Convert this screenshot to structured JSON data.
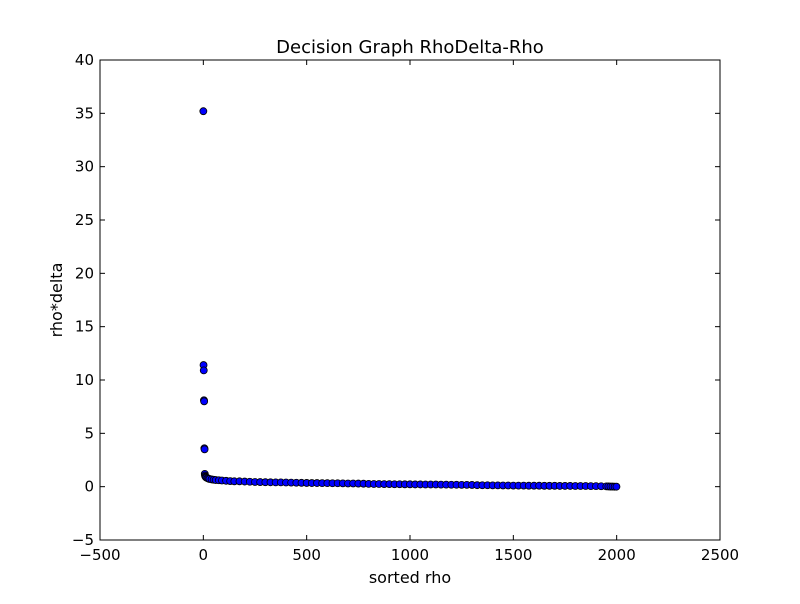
{
  "chart_data": {
    "type": "scatter",
    "title": "Decision Graph RhoDelta-Rho",
    "xlabel": "sorted rho",
    "ylabel": "rho*delta",
    "xlim": [
      -500,
      2500
    ],
    "ylim": [
      -5,
      40
    ],
    "xticks": [
      -500,
      0,
      500,
      1000,
      1500,
      2000,
      2500
    ],
    "yticks": [
      -5,
      0,
      5,
      10,
      15,
      20,
      25,
      30,
      35,
      40
    ],
    "xtick_labels": [
      "−500",
      "0",
      "500",
      "1000",
      "1500",
      "2000",
      "2500"
    ],
    "ytick_labels": [
      "−5",
      "0",
      "5",
      "10",
      "15",
      "20",
      "25",
      "30",
      "35",
      "40"
    ],
    "grid": false,
    "marker_color": "#0000ff",
    "marker_edge_color": "#000000",
    "series": [
      {
        "points": [
          [
            0,
            35.2
          ],
          [
            1,
            11.4
          ],
          [
            2,
            10.9
          ],
          [
            3,
            8.1
          ],
          [
            4,
            8.0
          ],
          [
            5,
            3.6
          ],
          [
            6,
            3.5
          ],
          [
            7,
            1.2
          ],
          [
            8,
            1.05
          ],
          [
            10,
            0.95
          ],
          [
            12,
            0.9
          ],
          [
            15,
            0.85
          ],
          [
            20,
            0.8
          ],
          [
            25,
            0.75
          ],
          [
            30,
            0.72
          ],
          [
            40,
            0.68
          ],
          [
            50,
            0.65
          ],
          [
            60,
            0.62
          ],
          [
            75,
            0.6
          ],
          [
            90,
            0.58
          ],
          [
            110,
            0.55
          ],
          [
            130,
            0.52
          ],
          [
            150,
            0.5
          ],
          [
            175,
            0.5
          ],
          [
            200,
            0.48
          ],
          [
            225,
            0.46
          ],
          [
            250,
            0.44
          ],
          [
            275,
            0.43
          ],
          [
            300,
            0.42
          ],
          [
            325,
            0.41
          ],
          [
            350,
            0.4
          ],
          [
            375,
            0.4
          ],
          [
            400,
            0.39
          ],
          [
            425,
            0.38
          ],
          [
            450,
            0.37
          ],
          [
            475,
            0.36
          ],
          [
            500,
            0.35
          ],
          [
            525,
            0.34
          ],
          [
            550,
            0.34
          ],
          [
            575,
            0.33
          ],
          [
            600,
            0.33
          ],
          [
            625,
            0.32
          ],
          [
            650,
            0.32
          ],
          [
            675,
            0.31
          ],
          [
            700,
            0.3
          ],
          [
            725,
            0.3
          ],
          [
            750,
            0.29
          ],
          [
            775,
            0.28
          ],
          [
            800,
            0.26
          ],
          [
            825,
            0.25
          ],
          [
            850,
            0.25
          ],
          [
            875,
            0.24
          ],
          [
            900,
            0.24
          ],
          [
            925,
            0.23
          ],
          [
            950,
            0.23
          ],
          [
            975,
            0.22
          ],
          [
            1000,
            0.22
          ],
          [
            1025,
            0.21
          ],
          [
            1050,
            0.21
          ],
          [
            1075,
            0.2
          ],
          [
            1100,
            0.2
          ],
          [
            1125,
            0.2
          ],
          [
            1150,
            0.19
          ],
          [
            1175,
            0.19
          ],
          [
            1200,
            0.18
          ],
          [
            1225,
            0.18
          ],
          [
            1250,
            0.17
          ],
          [
            1275,
            0.17
          ],
          [
            1300,
            0.16
          ],
          [
            1325,
            0.14
          ],
          [
            1350,
            0.13
          ],
          [
            1375,
            0.13
          ],
          [
            1400,
            0.12
          ],
          [
            1425,
            0.12
          ],
          [
            1450,
            0.11
          ],
          [
            1475,
            0.11
          ],
          [
            1500,
            0.1
          ],
          [
            1525,
            0.1
          ],
          [
            1550,
            0.1
          ],
          [
            1575,
            0.09
          ],
          [
            1600,
            0.09
          ],
          [
            1625,
            0.09
          ],
          [
            1650,
            0.08
          ],
          [
            1675,
            0.08
          ],
          [
            1700,
            0.08
          ],
          [
            1725,
            0.07
          ],
          [
            1750,
            0.07
          ],
          [
            1775,
            0.07
          ],
          [
            1800,
            0.06
          ],
          [
            1825,
            0.06
          ],
          [
            1850,
            0.06
          ],
          [
            1875,
            0.05
          ],
          [
            1900,
            0.05
          ],
          [
            1925,
            0.04
          ],
          [
            1950,
            0.03
          ],
          [
            1960,
            0.02
          ],
          [
            1970,
            0.01
          ],
          [
            1980,
            0.01
          ],
          [
            1990,
            0.0
          ],
          [
            1999,
            0.0
          ]
        ]
      }
    ]
  }
}
